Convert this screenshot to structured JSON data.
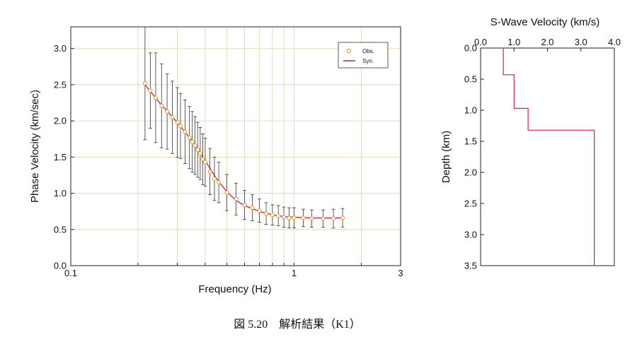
{
  "caption": "図 5.20　解析結果（K1）",
  "chart_data": [
    {
      "type": "scatter",
      "xlabel": "Frequency (Hz)",
      "ylabel": "Phase Velocity (km/sec)",
      "x_scale": "log",
      "xlim": [
        0.1,
        3
      ],
      "ylim": [
        0,
        3.3
      ],
      "x_ticks": [
        "0.1",
        "1",
        "3"
      ],
      "y_ticks": [
        "0.0",
        "0.5",
        "1.0",
        "1.5",
        "2.0",
        "2.5",
        "3.0"
      ],
      "grid": true,
      "legend_position": "top-right",
      "colors": {
        "obs": "#d4a017",
        "syn": "#d81b60",
        "grid": "#d8d8a8"
      },
      "series": [
        {
          "name": "Obs.",
          "marker": "open-circle",
          "points": [
            {
              "x": 0.215,
              "y": 2.52,
              "err": 0.78
            },
            {
              "x": 0.227,
              "y": 2.42,
              "err": 0.52
            },
            {
              "x": 0.24,
              "y": 2.32,
              "err": 0.62
            },
            {
              "x": 0.255,
              "y": 2.21,
              "err": 0.58
            },
            {
              "x": 0.27,
              "y": 2.13,
              "err": 0.52
            },
            {
              "x": 0.285,
              "y": 2.05,
              "err": 0.5
            },
            {
              "x": 0.3,
              "y": 1.98,
              "err": 0.48
            },
            {
              "x": 0.31,
              "y": 1.93,
              "err": 0.45
            },
            {
              "x": 0.325,
              "y": 1.85,
              "err": 0.44
            },
            {
              "x": 0.34,
              "y": 1.77,
              "err": 0.43
            },
            {
              "x": 0.35,
              "y": 1.71,
              "err": 0.42
            },
            {
              "x": 0.36,
              "y": 1.66,
              "err": 0.4
            },
            {
              "x": 0.37,
              "y": 1.6,
              "err": 0.38
            },
            {
              "x": 0.38,
              "y": 1.55,
              "err": 0.36
            },
            {
              "x": 0.39,
              "y": 1.47,
              "err": 0.35
            },
            {
              "x": 0.4,
              "y": 1.43,
              "err": 0.33
            },
            {
              "x": 0.42,
              "y": 1.3,
              "err": 0.32
            },
            {
              "x": 0.44,
              "y": 1.2,
              "err": 0.3
            },
            {
              "x": 0.46,
              "y": 1.15,
              "err": 0.28
            },
            {
              "x": 0.5,
              "y": 1.01,
              "err": 0.25
            },
            {
              "x": 0.55,
              "y": 0.92,
              "err": 0.22
            },
            {
              "x": 0.6,
              "y": 0.84,
              "err": 0.2
            },
            {
              "x": 0.65,
              "y": 0.8,
              "err": 0.18
            },
            {
              "x": 0.7,
              "y": 0.76,
              "err": 0.16
            },
            {
              "x": 0.75,
              "y": 0.72,
              "err": 0.15
            },
            {
              "x": 0.8,
              "y": 0.7,
              "err": 0.14
            },
            {
              "x": 0.85,
              "y": 0.69,
              "err": 0.14
            },
            {
              "x": 0.9,
              "y": 0.67,
              "err": 0.14
            },
            {
              "x": 0.95,
              "y": 0.66,
              "err": 0.14
            },
            {
              "x": 1.0,
              "y": 0.66,
              "err": 0.14
            },
            {
              "x": 1.1,
              "y": 0.66,
              "err": 0.12
            },
            {
              "x": 1.2,
              "y": 0.65,
              "err": 0.12
            },
            {
              "x": 1.35,
              "y": 0.65,
              "err": 0.12
            },
            {
              "x": 1.5,
              "y": 0.65,
              "err": 0.13
            },
            {
              "x": 1.65,
              "y": 0.66,
              "err": 0.13
            }
          ]
        },
        {
          "name": "Syn.",
          "marker": "line",
          "points": [
            {
              "x": 0.215,
              "y": 2.5
            },
            {
              "x": 0.25,
              "y": 2.25
            },
            {
              "x": 0.3,
              "y": 1.98
            },
            {
              "x": 0.35,
              "y": 1.72
            },
            {
              "x": 0.4,
              "y": 1.45
            },
            {
              "x": 0.45,
              "y": 1.2
            },
            {
              "x": 0.5,
              "y": 1.02
            },
            {
              "x": 0.55,
              "y": 0.9
            },
            {
              "x": 0.6,
              "y": 0.83
            },
            {
              "x": 0.7,
              "y": 0.75
            },
            {
              "x": 0.8,
              "y": 0.7
            },
            {
              "x": 0.9,
              "y": 0.68
            },
            {
              "x": 1.0,
              "y": 0.67
            },
            {
              "x": 1.2,
              "y": 0.66
            },
            {
              "x": 1.5,
              "y": 0.66
            },
            {
              "x": 1.65,
              "y": 0.66
            }
          ]
        }
      ]
    },
    {
      "type": "line",
      "title": "S-Wave Velocity (km/s)",
      "xlabel": "",
      "ylabel": "Depth (km)",
      "xlim": [
        0,
        4
      ],
      "ylim": [
        0,
        3.5
      ],
      "y_inverted": true,
      "x_axis_position": "top",
      "x_ticks": [
        "0.0",
        "1.0",
        "2.0",
        "3.0",
        "4.0"
      ],
      "y_ticks": [
        "0.0",
        "0.5",
        "1.0",
        "1.5",
        "2.0",
        "2.5",
        "3.0",
        "3.5"
      ],
      "grid": false,
      "colors": {
        "profile": "#d81b60"
      },
      "series": [
        {
          "name": "",
          "profile": [
            {
              "velocity": 0.68,
              "depth_top": 0.0,
              "depth_bottom": 0.43
            },
            {
              "velocity": 1.0,
              "depth_top": 0.43,
              "depth_bottom": 0.97
            },
            {
              "velocity": 1.42,
              "depth_top": 0.97,
              "depth_bottom": 1.32
            },
            {
              "velocity": 3.4,
              "depth_top": 1.32,
              "depth_bottom": 3.5
            }
          ]
        }
      ]
    }
  ]
}
